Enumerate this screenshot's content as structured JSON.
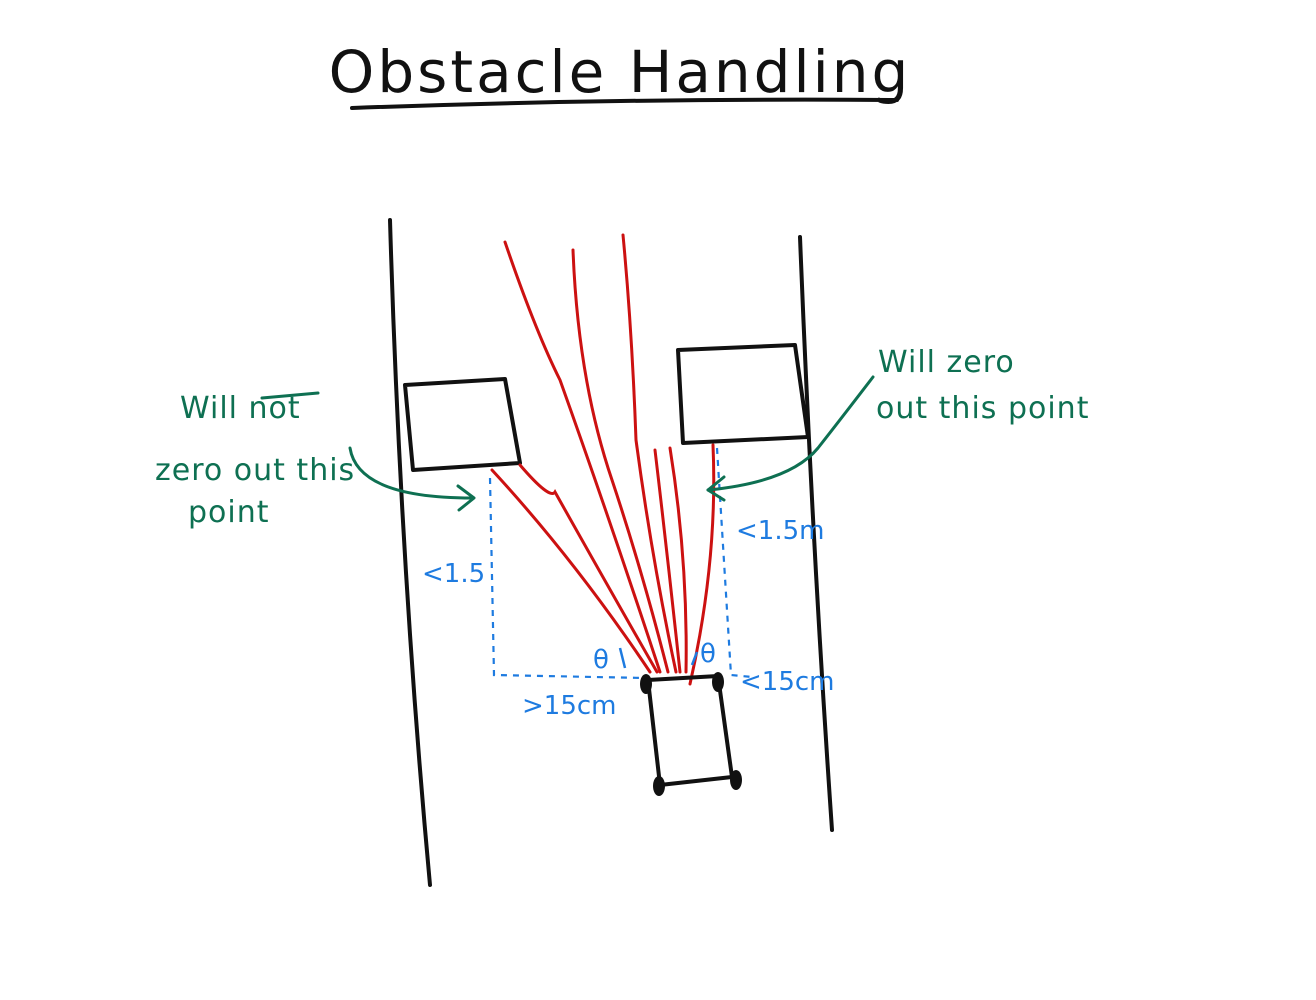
{
  "title": "Obstacle Handling",
  "notes": {
    "left": [
      "Will not",
      "zero out this",
      "point"
    ],
    "left_emphasis": "not",
    "right": [
      "Will zero",
      "out this point"
    ]
  },
  "measurements": {
    "left_vertical": "<1.5",
    "right_vertical": "<1.5m",
    "bottom_left": ">15cm",
    "bottom_right": "<15cm",
    "theta_left": "θ",
    "theta_right": "θ"
  },
  "colors": {
    "ink": "#111111",
    "rays": "#cc1111",
    "annotations": "#0e7052",
    "measurements": "#1e7be0",
    "background": "#ffffff"
  }
}
